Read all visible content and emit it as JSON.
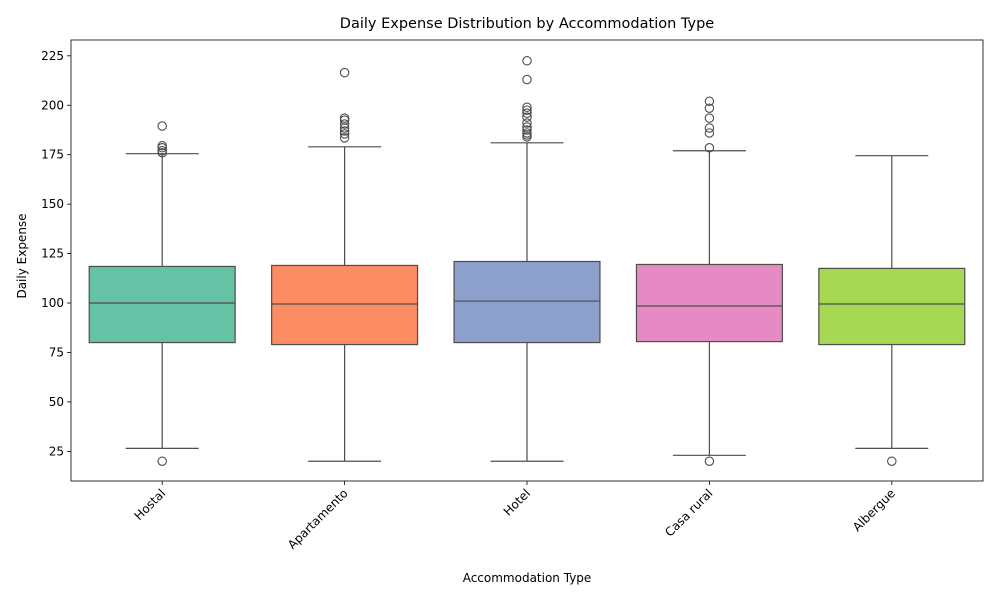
{
  "chart_data": {
    "type": "box",
    "title": "Daily Expense Distribution by Accommodation Type",
    "xlabel": "Accommodation Type",
    "ylabel": "Daily Expense",
    "ylim": [
      10,
      233
    ],
    "yticks": [
      25,
      50,
      75,
      100,
      125,
      150,
      175,
      200,
      225
    ],
    "grid": false,
    "legend": "none",
    "x_tick_rotation_deg": 45,
    "categories": [
      "Hostal",
      "Apartamento",
      "Hotel",
      "Casa rural",
      "Albergue"
    ],
    "boxes": [
      {
        "category": "Hostal",
        "color": "#66c2a5",
        "q1": 80,
        "median": 100,
        "q3": 118.5,
        "whisker_low": 26.5,
        "whisker_high": 175.5,
        "outliers": [
          20,
          176,
          177,
          178.5,
          179.5,
          189.5
        ]
      },
      {
        "category": "Apartamento",
        "color": "#fc8d62",
        "q1": 79,
        "median": 99.5,
        "q3": 119,
        "whisker_low": 20,
        "whisker_high": 179,
        "outliers": [
          183.5,
          185.5,
          187,
          188.5,
          190.5,
          192.5,
          193.5,
          216.5
        ]
      },
      {
        "category": "Hotel",
        "color": "#8da0cb",
        "q1": 80,
        "median": 101,
        "q3": 121,
        "whisker_low": 20,
        "whisker_high": 181,
        "outliers": [
          184,
          185,
          186,
          187.5,
          189,
          191,
          194,
          196,
          197.5,
          199,
          213,
          222.5
        ]
      },
      {
        "category": "Casa rural",
        "color": "#e78ac3",
        "q1": 80.5,
        "median": 98.5,
        "q3": 119.5,
        "whisker_low": 23,
        "whisker_high": 177,
        "outliers": [
          20,
          178.5,
          186,
          188.5,
          193.5,
          198.5,
          202
        ]
      },
      {
        "category": "Albergue",
        "color": "#a6d854",
        "q1": 79,
        "median": 99.5,
        "q3": 117.5,
        "whisker_low": 26.5,
        "whisker_high": 174.5,
        "outliers": [
          20
        ]
      }
    ]
  }
}
